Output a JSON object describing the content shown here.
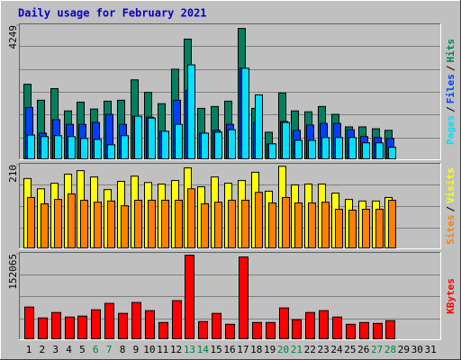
{
  "title": "Daily usage for February 2021",
  "categories": [
    "1",
    "2",
    "3",
    "4",
    "5",
    "6",
    "7",
    "8",
    "9",
    "10",
    "11",
    "12",
    "13",
    "14",
    "15",
    "16",
    "17",
    "18",
    "19",
    "20",
    "21",
    "22",
    "23",
    "24",
    "25",
    "26",
    "27",
    "28",
    "29",
    "30",
    "31"
  ],
  "category_colors": [
    "#000000",
    "#000000",
    "#000000",
    "#000000",
    "#000000",
    "#008040",
    "#008040",
    "#000000",
    "#000000",
    "#000000",
    "#000000",
    "#000000",
    "#008040",
    "#008040",
    "#000000",
    "#000000",
    "#000000",
    "#000000",
    "#000000",
    "#008040",
    "#008040",
    "#000000",
    "#000000",
    "#000000",
    "#000000",
    "#000000",
    "#008040",
    "#008040",
    "#000000",
    "#000000",
    "#000000"
  ],
  "legend_separator": "/",
  "chart_data": [
    {
      "type": "bar",
      "ylim": [
        0,
        4249
      ],
      "yticks": [
        4249
      ],
      "grid": true,
      "series": [
        {
          "name": "Hits",
          "color": "#008060",
          "values": [
            2380,
            1870,
            2240,
            1530,
            1810,
            1590,
            1840,
            1870,
            2520,
            2120,
            1760,
            2860,
            3820,
            1610,
            1670,
            1840,
            4160,
            1610,
            850,
            2100,
            1530,
            1500,
            1670,
            1420,
            1020,
            1020,
            960,
            910,
            null,
            null,
            null
          ]
        },
        {
          "name": "Files",
          "color": "#0040ff",
          "values": [
            1640,
            820,
            1250,
            1100,
            1100,
            1160,
            1420,
            1100,
            1360,
            1330,
            880,
            1870,
            2180,
            820,
            910,
            1100,
            2890,
            1160,
            480,
            1190,
            910,
            1080,
            1130,
            1130,
            930,
            710,
            680,
            650,
            null,
            null,
            null
          ]
        },
        {
          "name": "Pages",
          "color": "#00e0ff",
          "values": [
            760,
            710,
            740,
            710,
            650,
            620,
            450,
            740,
            1360,
            1300,
            880,
            1100,
            3000,
            820,
            850,
            930,
            2890,
            2040,
            480,
            1160,
            590,
            590,
            680,
            680,
            680,
            510,
            510,
            370,
            null,
            null,
            null
          ]
        }
      ]
    },
    {
      "type": "bar",
      "ylim": [
        0,
        210
      ],
      "yticks": [
        210
      ],
      "grid": true,
      "series": [
        {
          "name": "Visits",
          "color": "#ffff00",
          "values": [
            176,
            150,
            164,
            187,
            196,
            180,
            148,
            169,
            182,
            166,
            162,
            171,
            203,
            155,
            180,
            164,
            171,
            192,
            144,
            207,
            160,
            162,
            162,
            139,
            123,
            119,
            119,
            128,
            null,
            null,
            null
          ]
        },
        {
          "name": "Sites",
          "color": "#ff8000",
          "values": [
            128,
            112,
            123,
            137,
            121,
            116,
            119,
            107,
            121,
            121,
            121,
            121,
            150,
            112,
            116,
            121,
            121,
            141,
            114,
            128,
            114,
            114,
            116,
            98,
            96,
            98,
            98,
            121,
            null,
            null,
            null
          ]
        }
      ]
    },
    {
      "type": "bar",
      "ylim": [
        0,
        152065
      ],
      "yticks": [
        152065
      ],
      "grid": true,
      "series": [
        {
          "name": "KBytes",
          "color": "#ff0000",
          "values": [
            57200,
            37600,
            47400,
            39200,
            40900,
            52300,
            63800,
            45800,
            65400,
            50700,
            29400,
            68700,
            150400,
            31100,
            45800,
            26200,
            147200,
            29400,
            29400,
            55600,
            34300,
            47400,
            50700,
            39200,
            26200,
            29400,
            27800,
            32700,
            null,
            null,
            null
          ]
        }
      ]
    }
  ]
}
